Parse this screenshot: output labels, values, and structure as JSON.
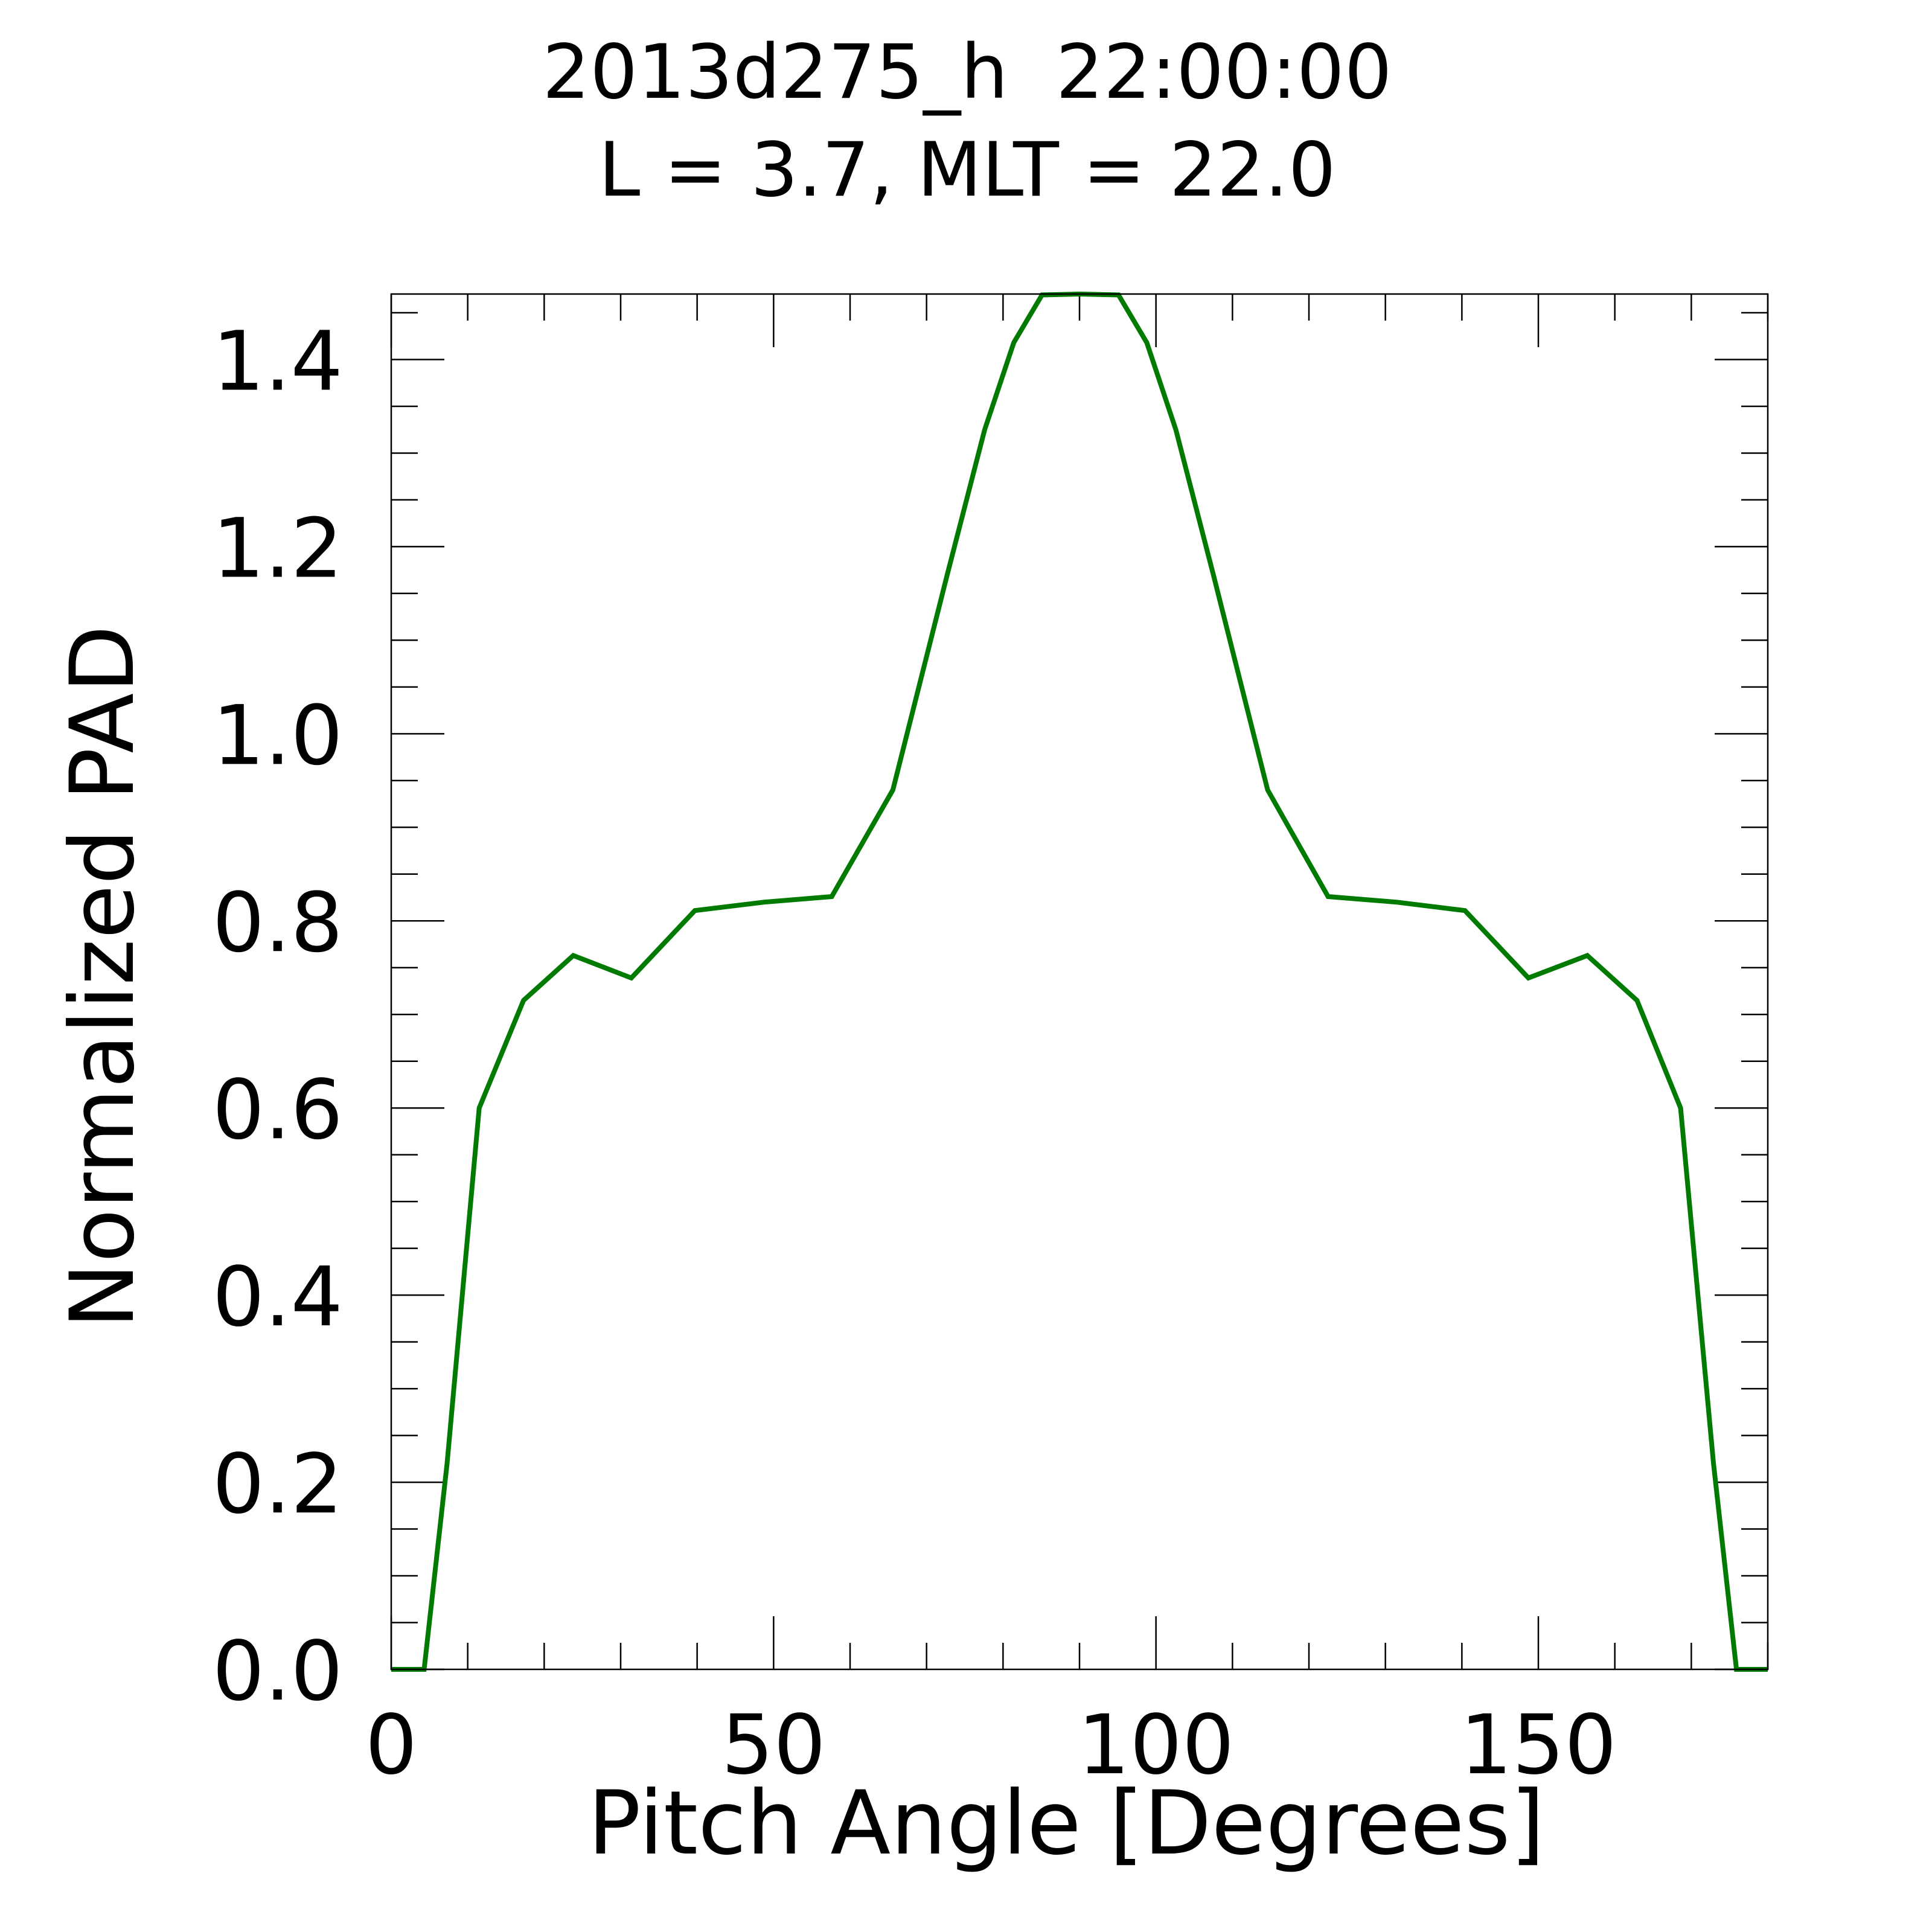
{
  "chart_data": {
    "type": "line",
    "title_line1": "2013d275_h  22:00:00",
    "title_line2": "L = 3.7, MLT = 22.0",
    "xlabel": "Pitch Angle [Degrees]",
    "ylabel": "Normalized PAD",
    "xlim": [
      0,
      180
    ],
    "ylim": [
      0,
      1.47
    ],
    "x_ticks": [
      0,
      50,
      100,
      150
    ],
    "x_tick_labels": [
      "0",
      "50",
      "100",
      "150"
    ],
    "x_minor_step": 10,
    "y_ticks": [
      0.0,
      0.2,
      0.4,
      0.6,
      0.8,
      1.0,
      1.2,
      1.4
    ],
    "y_tick_labels": [
      "0.0",
      "0.2",
      "0.4",
      "0.6",
      "0.8",
      "1.0",
      "1.2",
      "1.4"
    ],
    "y_minor_step": 0.05,
    "grid": false,
    "legend": "none",
    "series": [
      {
        "color": "#007a00",
        "x": [
          0,
          4.3,
          7.3,
          11.5,
          17.3,
          23.8,
          31.4,
          39.7,
          48.7,
          57.6,
          65.6,
          72.7,
          77.6,
          81.4,
          85.1,
          89.9,
          95.1,
          98.8,
          102.6,
          107.5,
          114.6,
          122.5,
          131.5,
          140.4,
          148.7,
          156.4,
          162.9,
          168.6,
          172.9,
          175.9,
          180
        ],
        "y": [
          0,
          0,
          0.22,
          0.6,
          0.715,
          0.763,
          0.739,
          0.811,
          0.82,
          0.826,
          0.94,
          1.17,
          1.325,
          1.418,
          1.469,
          1.47,
          1.469,
          1.418,
          1.325,
          1.17,
          0.94,
          0.826,
          0.82,
          0.811,
          0.739,
          0.763,
          0.715,
          0.6,
          0.22,
          0,
          0
        ]
      }
    ]
  }
}
